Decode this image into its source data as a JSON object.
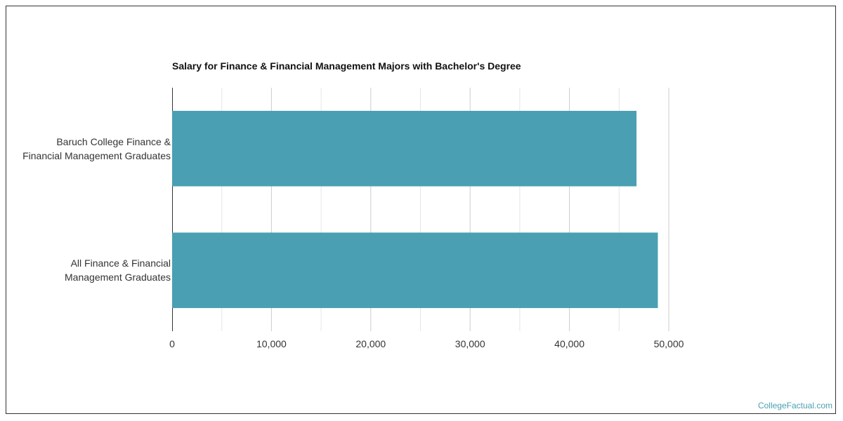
{
  "chart_data": {
    "type": "bar",
    "orientation": "horizontal",
    "title": "Salary for Finance & Financial Management Majors with Bachelor's Degree",
    "categories": [
      "Baruch College Finance &\nFinancial Management Graduates",
      "All Finance & Financial\nManagement Graduates"
    ],
    "values": [
      46750,
      48900
    ],
    "color": "#4aa0b2",
    "xlim": [
      0,
      50000
    ],
    "xticks": [
      0,
      {
        "value": 10000,
        "label": "10,000"
      },
      {
        "value": 20000,
        "label": "20,000"
      },
      {
        "value": 30000,
        "label": "30,000"
      },
      {
        "value": 40000,
        "label": "40,000"
      },
      {
        "value": 50000,
        "label": "50,000"
      }
    ],
    "xminorticks": [
      5000,
      15000,
      25000,
      35000,
      45000
    ],
    "grid": true,
    "source": "CollegeFactual.com"
  }
}
